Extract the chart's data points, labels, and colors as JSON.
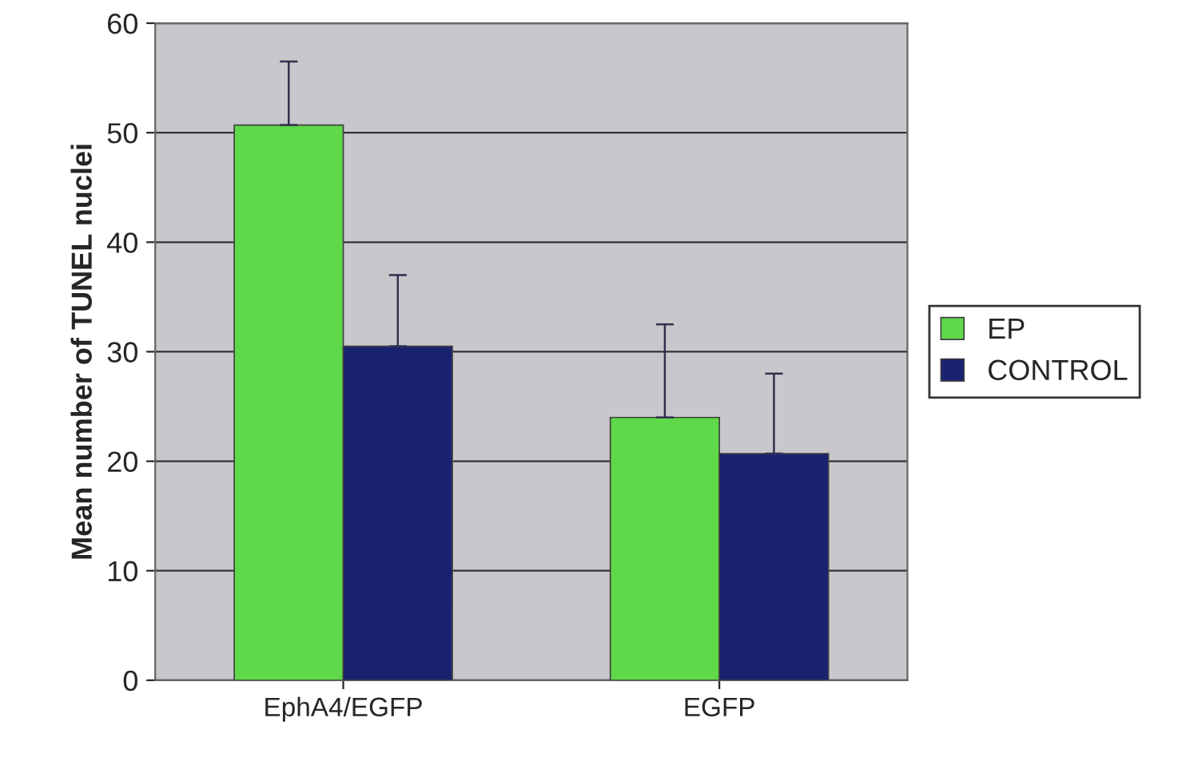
{
  "chart_data": {
    "type": "bar",
    "ylabel": "Mean number of TUNEL nuclei",
    "categories": [
      "EphA4/EGFP",
      "EGFP"
    ],
    "series": [
      {
        "name": "EP",
        "color": "#5fd84a",
        "values": [
          50.7,
          24
        ],
        "errors": [
          [
            50.7,
            56.5
          ],
          [
            24,
            32.5
          ]
        ]
      },
      {
        "name": "CONTROL",
        "color": "#1a2270",
        "values": [
          30.5,
          20.7
        ],
        "errors": [
          [
            30.5,
            37
          ],
          [
            20.7,
            28
          ]
        ]
      }
    ],
    "ylim": [
      0,
      60
    ],
    "yticks": [
      0,
      10,
      20,
      30,
      40,
      50,
      60
    ],
    "grid": "y",
    "legend": "right"
  }
}
